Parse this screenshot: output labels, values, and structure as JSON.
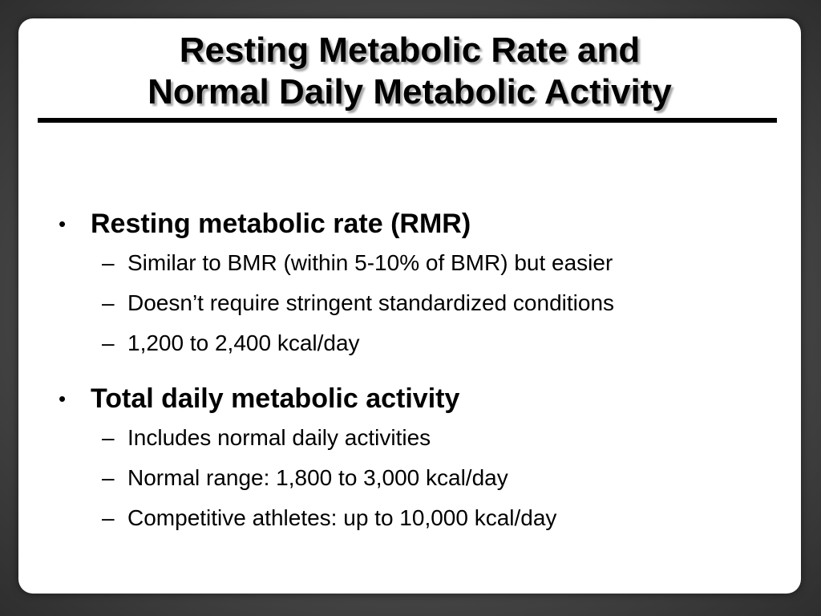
{
  "slide": {
    "title_line1": "Resting Metabolic Rate and",
    "title_line2": "Normal Daily Metabolic Activity",
    "bullet_glyph": "•",
    "dash_glyph": "–",
    "sections": [
      {
        "heading": "Resting metabolic rate (RMR)",
        "items": [
          "Similar to BMR (within 5-10% of BMR) but easier",
          "Doesn’t require stringent standardized conditions",
          "1,200 to 2,400 kcal/day"
        ]
      },
      {
        "heading": "Total daily metabolic activity",
        "items": [
          "Includes normal daily activities",
          "Normal range: 1,800 to 3,000 kcal/day",
          "Competitive athletes: up to 10,000 kcal/day"
        ]
      }
    ]
  }
}
